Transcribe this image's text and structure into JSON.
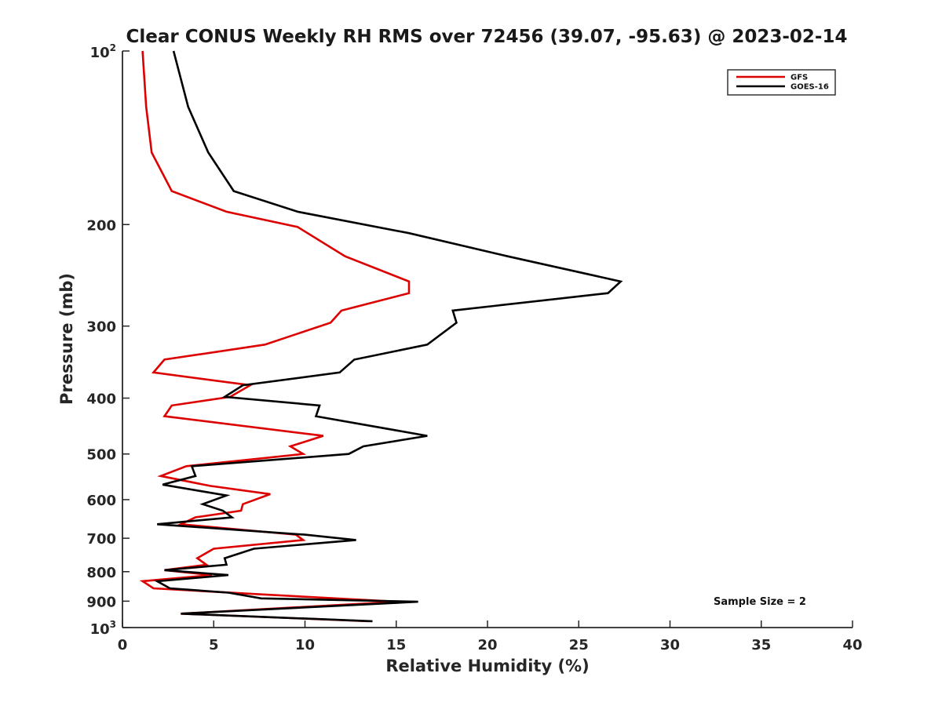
{
  "chart_data": {
    "type": "line",
    "title": "Clear CONUS Weekly RH RMS over 72456 (39.07, -95.63) @ 2023-02-14",
    "xlabel": "Relative Humidity (%)",
    "ylabel": "Pressure (mb)",
    "xlim": [
      0,
      40
    ],
    "ylim": [
      100,
      1000
    ],
    "yscale": "log",
    "y_reversed": true,
    "grid": false,
    "legend_position": "top-right",
    "x_ticks": [
      "0",
      "5",
      "10",
      "15",
      "20",
      "25",
      "30",
      "35",
      "40"
    ],
    "y_ticks": [
      {
        "value": 100,
        "base": "10",
        "exp": "2"
      },
      {
        "value": 200,
        "label": "200"
      },
      {
        "value": 300,
        "label": "300"
      },
      {
        "value": 400,
        "label": "400"
      },
      {
        "value": 500,
        "label": "500"
      },
      {
        "value": 600,
        "label": "600"
      },
      {
        "value": 700,
        "label": "700"
      },
      {
        "value": 800,
        "label": "800"
      },
      {
        "value": 900,
        "label": "900"
      },
      {
        "value": 1000,
        "base": "10",
        "exp": "3"
      }
    ],
    "annotation": "Sample Size = 2",
    "series": [
      {
        "name": "GFS",
        "color": "#dd0000",
        "points": [
          [
            1.1,
            100
          ],
          [
            1.3,
            125
          ],
          [
            1.6,
            150
          ],
          [
            2.7,
            175
          ],
          [
            5.7,
            190
          ],
          [
            9.6,
            202
          ],
          [
            12.2,
            227
          ],
          [
            15.7,
            251
          ],
          [
            15.7,
            263
          ],
          [
            12.0,
            282
          ],
          [
            11.4,
            296
          ],
          [
            7.8,
            323
          ],
          [
            2.3,
            343
          ],
          [
            1.7,
            361
          ],
          [
            7.0,
            380
          ],
          [
            5.9,
            398
          ],
          [
            2.7,
            412
          ],
          [
            2.3,
            430
          ],
          [
            11.0,
            465
          ],
          [
            9.2,
            485
          ],
          [
            9.9,
            500
          ],
          [
            3.5,
            525
          ],
          [
            2.1,
            546
          ],
          [
            4.8,
            568
          ],
          [
            8.1,
            587
          ],
          [
            6.6,
            611
          ],
          [
            6.5,
            627
          ],
          [
            4.0,
            644
          ],
          [
            3.2,
            662
          ],
          [
            9.5,
            690
          ],
          [
            9.9,
            705
          ],
          [
            5.0,
            730
          ],
          [
            4.1,
            758
          ],
          [
            4.6,
            778
          ],
          [
            2.3,
            795
          ],
          [
            4.9,
            811
          ],
          [
            1.1,
            831
          ],
          [
            1.7,
            855
          ],
          [
            7.4,
            875
          ],
          [
            15.1,
            902
          ],
          [
            3.2,
            946
          ],
          [
            13.5,
            975
          ]
        ]
      },
      {
        "name": "GOES-16",
        "color": "#000000",
        "points": [
          [
            2.8,
            100
          ],
          [
            3.6,
            125
          ],
          [
            4.7,
            150
          ],
          [
            6.1,
            175
          ],
          [
            9.6,
            190
          ],
          [
            15.7,
            207
          ],
          [
            21.1,
            227
          ],
          [
            27.3,
            251
          ],
          [
            26.6,
            263
          ],
          [
            18.1,
            282
          ],
          [
            18.3,
            296
          ],
          [
            16.7,
            323
          ],
          [
            12.7,
            343
          ],
          [
            11.9,
            361
          ],
          [
            6.6,
            380
          ],
          [
            5.6,
            398
          ],
          [
            10.8,
            412
          ],
          [
            10.6,
            430
          ],
          [
            16.7,
            465
          ],
          [
            13.2,
            485
          ],
          [
            12.4,
            500
          ],
          [
            3.8,
            525
          ],
          [
            4.0,
            546
          ],
          [
            2.2,
            565
          ],
          [
            5.7,
            590
          ],
          [
            4.4,
            611
          ],
          [
            5.5,
            627
          ],
          [
            6.0,
            644
          ],
          [
            1.9,
            662
          ],
          [
            10.0,
            690
          ],
          [
            12.8,
            705
          ],
          [
            7.2,
            730
          ],
          [
            5.6,
            758
          ],
          [
            5.7,
            778
          ],
          [
            2.3,
            795
          ],
          [
            5.8,
            811
          ],
          [
            1.9,
            831
          ],
          [
            2.6,
            855
          ],
          [
            5.8,
            870
          ],
          [
            7.6,
            890
          ],
          [
            16.2,
            902
          ],
          [
            3.2,
            946
          ],
          [
            13.7,
            975
          ]
        ]
      }
    ]
  }
}
